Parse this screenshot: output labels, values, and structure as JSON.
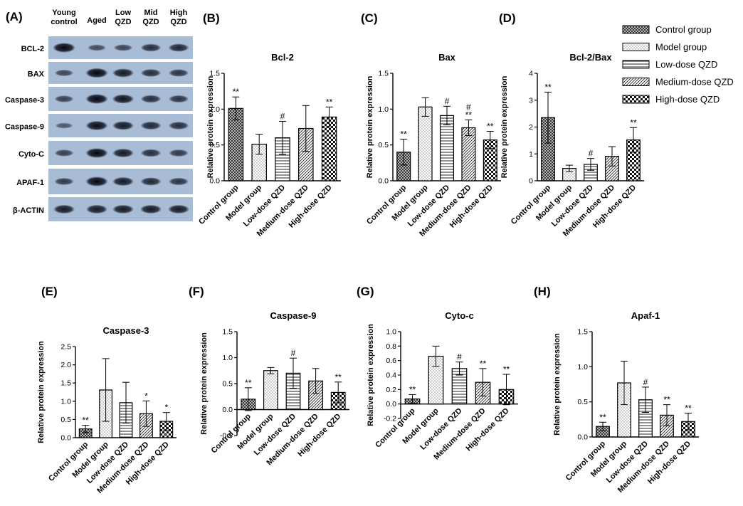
{
  "blot": {
    "panel_label": "(A)",
    "columns": [
      [
        "Young",
        "control"
      ],
      [
        "Aged"
      ],
      [
        "Low",
        "QZD"
      ],
      [
        "Mid",
        "QZD"
      ],
      [
        "High",
        "QZD"
      ]
    ],
    "proteins": [
      "BCL-2",
      "BAX",
      "Caspase-3",
      "Caspase-9",
      "Cyto-C",
      "APAF-1",
      "β-ACTIN"
    ],
    "band_intensity": [
      [
        1.0,
        0.45,
        0.5,
        0.7,
        0.75
      ],
      [
        0.5,
        1.0,
        0.85,
        0.7,
        0.65
      ],
      [
        0.55,
        1.0,
        0.9,
        0.7,
        0.65
      ],
      [
        0.35,
        0.95,
        0.85,
        0.75,
        0.7
      ],
      [
        0.55,
        1.0,
        0.85,
        0.7,
        0.6
      ],
      [
        0.6,
        1.0,
        0.85,
        0.75,
        0.65
      ],
      [
        0.85,
        0.85,
        0.85,
        0.85,
        0.85
      ]
    ]
  },
  "legend": {
    "entries": [
      "Control group",
      "Model group",
      "Low-dose QZD",
      "Medium-dose QZD",
      "High-dose QZD"
    ],
    "patterns": [
      "crosshatch",
      "dots",
      "hlines",
      "diag",
      "checker"
    ]
  },
  "chart_data": [
    {
      "panel_label": "(B)",
      "type": "bar",
      "title": "Bcl-2",
      "ylabel": "Relative protein expression",
      "categories": [
        "Control group",
        "Model group",
        "Low-dose QZD",
        "Medium-dose QZD",
        "High-dose QZD"
      ],
      "values": [
        1.01,
        0.51,
        0.6,
        0.73,
        0.89
      ],
      "errors": [
        0.16,
        0.14,
        0.23,
        0.32,
        0.14
      ],
      "annotations": [
        "**",
        "",
        "#",
        "",
        "**"
      ],
      "ylim": [
        0,
        1.5
      ],
      "yticks": [
        "0.0",
        "0.5",
        "1.0",
        "1.5"
      ]
    },
    {
      "panel_label": "(C)",
      "type": "bar",
      "title": "Bax",
      "ylabel": "Relative protein expression",
      "categories": [
        "Control group",
        "Model group",
        "Low-dose QZD",
        "Medium-dose QZD",
        "High-dose QZD"
      ],
      "values": [
        0.4,
        1.03,
        0.91,
        0.74,
        0.57
      ],
      "errors": [
        0.18,
        0.13,
        0.13,
        0.11,
        0.12
      ],
      "annotations": [
        "**",
        "",
        "#",
        "#\n**",
        "**"
      ],
      "ylim": [
        0,
        1.5
      ],
      "yticks": [
        "0.0",
        "0.5",
        "1.0",
        "1.5"
      ]
    },
    {
      "panel_label": "(D)",
      "type": "bar",
      "title": "Bcl-2/Bax",
      "ylabel": "Relative protein expression",
      "categories": [
        "Control group",
        "Model group",
        "Low-dose QZD",
        "Medium-dose QZD",
        "High-dose QZD"
      ],
      "values": [
        2.35,
        0.46,
        0.61,
        0.91,
        1.52
      ],
      "errors": [
        0.95,
        0.12,
        0.22,
        0.36,
        0.46
      ],
      "annotations": [
        "**",
        "",
        "#",
        "",
        "**"
      ],
      "ylim": [
        0,
        4
      ],
      "yticks": [
        "0",
        "1",
        "2",
        "3",
        "4"
      ]
    },
    {
      "panel_label": "(E)",
      "type": "bar",
      "title": "Caspase-3",
      "ylabel": "Relative protein expression",
      "categories": [
        "Control group",
        "Model group",
        "Low-dose QZD",
        "Medium-dose QZD",
        "High-dose QZD"
      ],
      "values": [
        0.24,
        1.31,
        0.96,
        0.66,
        0.45
      ],
      "errors": [
        0.1,
        0.86,
        0.56,
        0.35,
        0.24
      ],
      "annotations": [
        "**",
        "",
        "",
        "*",
        "*"
      ],
      "ylim": [
        0,
        2.5
      ],
      "yticks": [
        "0.0",
        "0.5",
        "1.0",
        "1.5",
        "2.0",
        "2.5"
      ]
    },
    {
      "panel_label": "(F)",
      "type": "bar",
      "title": "Caspase-9",
      "ylabel": "Relative protein expression",
      "categories": [
        "Control group",
        "Model group",
        "Low-dose QZD",
        "Medium-dose QZD",
        "High-dose QZD"
      ],
      "values": [
        0.2,
        0.75,
        0.7,
        0.55,
        0.33
      ],
      "errors": [
        0.22,
        0.06,
        0.29,
        0.24,
        0.2
      ],
      "annotations": [
        "**",
        "",
        "#",
        "",
        "**"
      ],
      "ylim": [
        -0.5,
        1.5
      ],
      "yticks": [
        "-0.5",
        "0.0",
        "0.5",
        "1.0",
        "1.5"
      ]
    },
    {
      "panel_label": "(G)",
      "type": "bar",
      "title": "Cyto-c",
      "ylabel": "Relative protein expression",
      "categories": [
        "Control group",
        "Model group",
        "Low-dose QZD",
        "Medium-dose QZD",
        "High-dose QZD"
      ],
      "values": [
        0.07,
        0.66,
        0.49,
        0.3,
        0.2
      ],
      "errors": [
        0.06,
        0.14,
        0.09,
        0.19,
        0.21
      ],
      "annotations": [
        "**",
        "",
        "#",
        "**",
        "**"
      ],
      "ylim": [
        -0.2,
        1.0
      ],
      "yticks": [
        "-0.2",
        "0.0",
        "0.2",
        "0.4",
        "0.6",
        "0.8",
        "1.0"
      ]
    },
    {
      "panel_label": "(H)",
      "type": "bar",
      "title": "Apaf-1",
      "ylabel": "Relative protein expression",
      "categories": [
        "Control group",
        "Model group",
        "Low-dose QZD",
        "Medium-dose QZD",
        "High-dose QZD"
      ],
      "values": [
        0.15,
        0.77,
        0.53,
        0.31,
        0.22
      ],
      "errors": [
        0.06,
        0.31,
        0.18,
        0.15,
        0.12
      ],
      "annotations": [
        "**",
        "",
        "#",
        "**",
        "**"
      ],
      "ylim": [
        0,
        1.5
      ],
      "yticks": [
        "0.0",
        "0.5",
        "1.0",
        "1.5"
      ]
    }
  ]
}
